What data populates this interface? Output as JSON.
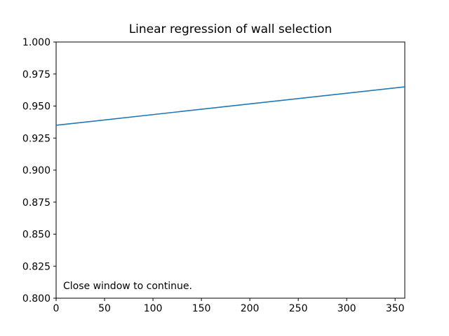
{
  "figure": {
    "background": "#ffffff",
    "text_color": "#000000",
    "spine_color": "#000000"
  },
  "chart_data": {
    "type": "line",
    "title": "Linear regression of wall selection",
    "annotation": "Close window to continue.",
    "xlabel": "",
    "ylabel": "",
    "xlim": [
      0,
      360
    ],
    "ylim": [
      0.8,
      1.0
    ],
    "x_ticks": [
      0,
      50,
      100,
      150,
      200,
      250,
      300,
      350
    ],
    "x_tick_labels": [
      "0",
      "50",
      "100",
      "150",
      "200",
      "250",
      "300",
      "350"
    ],
    "y_ticks": [
      0.8,
      0.825,
      0.85,
      0.875,
      0.9,
      0.925,
      0.95,
      0.975,
      1.0
    ],
    "y_tick_labels": [
      "0.800",
      "0.825",
      "0.850",
      "0.875",
      "0.900",
      "0.925",
      "0.950",
      "0.975",
      "1.000"
    ],
    "grid": false,
    "legend": "none",
    "x": [
      0,
      360
    ],
    "series": [
      {
        "name": "regression-line",
        "color": "#1f77b4",
        "line_width": 1.6,
        "values": [
          0.935,
          0.965
        ]
      }
    ]
  }
}
